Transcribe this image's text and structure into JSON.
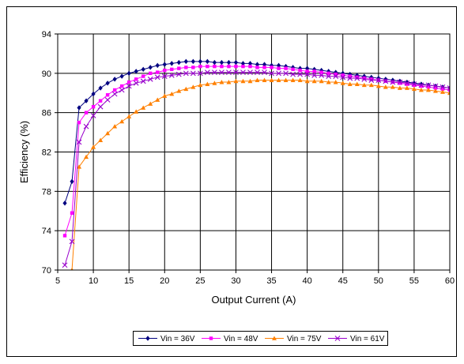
{
  "chart_data": {
    "type": "line",
    "title": "",
    "xlabel": "Output Current (A)",
    "ylabel": "Efficiency (%)",
    "xlim": [
      5,
      60
    ],
    "ylim": [
      70,
      94
    ],
    "xticks": [
      5,
      10,
      15,
      20,
      25,
      30,
      35,
      40,
      45,
      50,
      55,
      60
    ],
    "yticks": [
      70,
      74,
      78,
      82,
      86,
      90,
      94
    ],
    "grid": true,
    "legend_position": "bottom",
    "series": [
      {
        "name": "Vin = 36V",
        "color": "#000080",
        "marker": "diamond",
        "x": [
          6,
          7,
          8,
          9,
          10,
          11,
          12,
          13,
          14,
          15,
          16,
          17,
          18,
          19,
          20,
          21,
          22,
          23,
          24,
          25,
          26,
          27,
          28,
          29,
          30,
          31,
          32,
          33,
          34,
          35,
          36,
          37,
          38,
          39,
          40,
          41,
          42,
          43,
          44,
          45,
          46,
          47,
          48,
          49,
          50,
          51,
          52,
          53,
          54,
          55,
          56,
          57,
          58,
          59,
          60
        ],
        "y": [
          76.8,
          79.0,
          86.5,
          87.2,
          87.9,
          88.5,
          89.0,
          89.4,
          89.7,
          90.0,
          90.2,
          90.4,
          90.6,
          90.8,
          90.9,
          91.0,
          91.1,
          91.2,
          91.2,
          91.2,
          91.2,
          91.1,
          91.1,
          91.1,
          91.1,
          91.0,
          91.0,
          90.9,
          90.9,
          90.8,
          90.8,
          90.7,
          90.6,
          90.5,
          90.5,
          90.4,
          90.3,
          90.2,
          90.1,
          90.0,
          89.9,
          89.8,
          89.7,
          89.6,
          89.5,
          89.4,
          89.3,
          89.2,
          89.1,
          89.0,
          88.9,
          88.8,
          88.7,
          88.6,
          88.5
        ]
      },
      {
        "name": "Vin = 48V",
        "color": "#ff00ff",
        "marker": "square",
        "x": [
          6,
          7,
          8,
          9,
          10,
          11,
          12,
          13,
          14,
          15,
          16,
          17,
          18,
          19,
          20,
          21,
          22,
          23,
          24,
          25,
          26,
          27,
          28,
          29,
          30,
          31,
          32,
          33,
          34,
          35,
          36,
          37,
          38,
          39,
          40,
          41,
          42,
          43,
          44,
          45,
          46,
          47,
          48,
          49,
          50,
          51,
          52,
          53,
          54,
          55,
          56,
          57,
          58,
          59,
          60
        ],
        "y": [
          73.5,
          75.8,
          85.0,
          86.0,
          86.6,
          87.2,
          87.8,
          88.3,
          88.7,
          89.1,
          89.4,
          89.7,
          90.0,
          90.1,
          90.3,
          90.4,
          90.5,
          90.6,
          90.6,
          90.7,
          90.7,
          90.7,
          90.7,
          90.7,
          90.7,
          90.7,
          90.7,
          90.6,
          90.6,
          90.6,
          90.5,
          90.5,
          90.4,
          90.3,
          90.2,
          90.2,
          90.1,
          90.0,
          89.9,
          89.8,
          89.7,
          89.6,
          89.5,
          89.4,
          89.3,
          89.2,
          89.1,
          89.0,
          88.9,
          88.8,
          88.7,
          88.6,
          88.5,
          88.4,
          88.3
        ]
      },
      {
        "name": "Vin = 75V",
        "color": "#ff8000",
        "marker": "triangle",
        "x": [
          7,
          8,
          9,
          10,
          11,
          12,
          13,
          14,
          15,
          16,
          17,
          18,
          19,
          20,
          21,
          22,
          23,
          24,
          25,
          26,
          27,
          28,
          29,
          30,
          31,
          32,
          33,
          34,
          35,
          36,
          37,
          38,
          39,
          40,
          41,
          42,
          43,
          44,
          45,
          46,
          47,
          48,
          49,
          50,
          51,
          52,
          53,
          54,
          55,
          56,
          57,
          58,
          59,
          60
        ],
        "y": [
          70.0,
          80.5,
          81.5,
          82.5,
          83.2,
          83.9,
          84.6,
          85.1,
          85.6,
          86.1,
          86.5,
          86.9,
          87.3,
          87.7,
          87.9,
          88.2,
          88.4,
          88.6,
          88.8,
          88.9,
          89.0,
          89.1,
          89.1,
          89.2,
          89.2,
          89.2,
          89.3,
          89.3,
          89.3,
          89.3,
          89.3,
          89.3,
          89.3,
          89.2,
          89.2,
          89.2,
          89.1,
          89.1,
          89.0,
          88.9,
          88.9,
          88.8,
          88.8,
          88.7,
          88.6,
          88.6,
          88.5,
          88.5,
          88.4,
          88.3,
          88.3,
          88.2,
          88.1,
          88.0
        ]
      },
      {
        "name": "Vin = 61V",
        "color": "#9900cc",
        "marker": "x",
        "x": [
          6,
          7,
          8,
          9,
          10,
          11,
          12,
          13,
          14,
          15,
          16,
          17,
          18,
          19,
          20,
          21,
          22,
          23,
          24,
          25,
          26,
          27,
          28,
          29,
          30,
          31,
          32,
          33,
          34,
          35,
          36,
          37,
          38,
          39,
          40,
          41,
          42,
          43,
          44,
          45,
          46,
          47,
          48,
          49,
          50,
          51,
          52,
          53,
          54,
          55,
          56,
          57,
          58,
          59,
          60
        ],
        "y": [
          70.5,
          72.9,
          83.0,
          84.6,
          85.7,
          86.6,
          87.3,
          87.9,
          88.3,
          88.7,
          89.0,
          89.2,
          89.4,
          89.6,
          89.7,
          89.8,
          89.9,
          90.0,
          90.0,
          90.0,
          90.1,
          90.1,
          90.1,
          90.1,
          90.1,
          90.1,
          90.1,
          90.1,
          90.1,
          90.0,
          90.0,
          90.0,
          89.9,
          89.9,
          89.9,
          89.8,
          89.8,
          89.7,
          89.7,
          89.6,
          89.5,
          89.5,
          89.4,
          89.3,
          89.3,
          89.2,
          89.1,
          89.1,
          89.0,
          88.9,
          88.8,
          88.8,
          88.7,
          88.6,
          88.5
        ]
      }
    ]
  }
}
